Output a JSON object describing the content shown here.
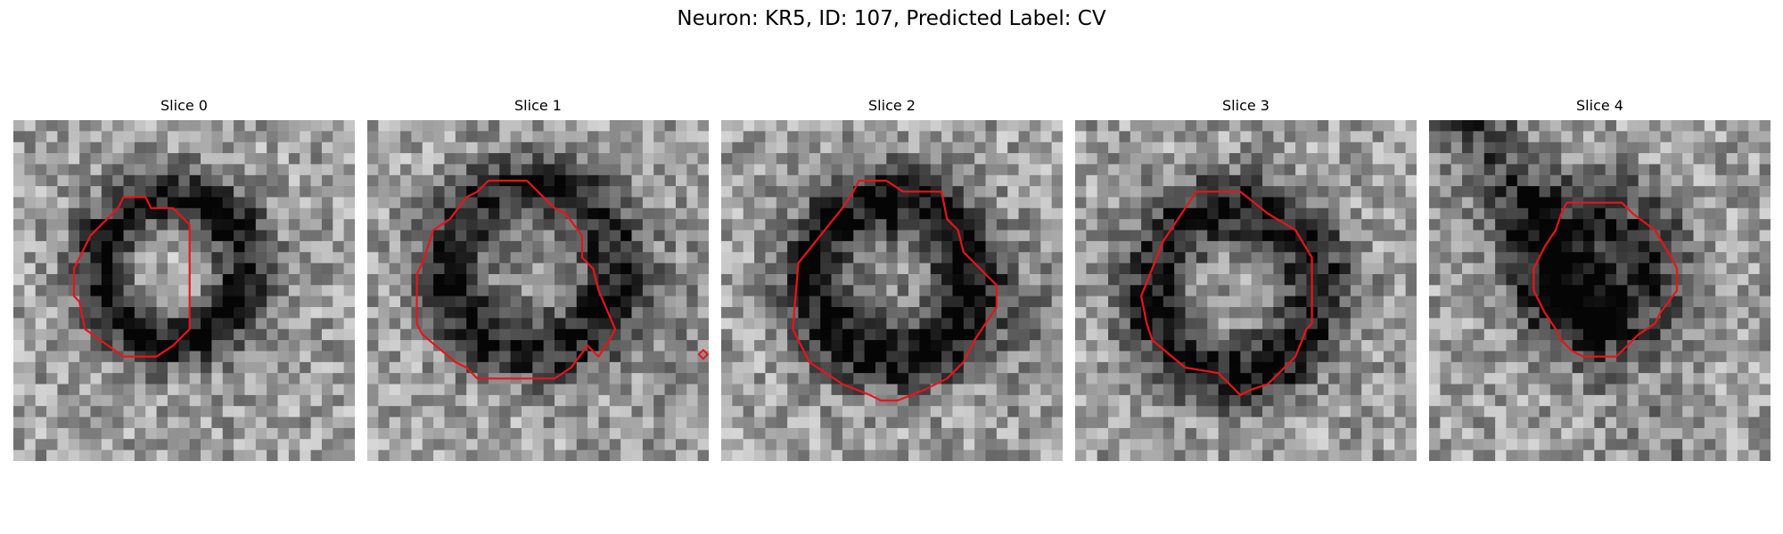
{
  "figure": {
    "title": "Neuron: KR5, ID: 107, Predicted Label: CV"
  },
  "panels": [
    {
      "title": "Slice 0"
    },
    {
      "title": "Slice 1"
    },
    {
      "title": "Slice 2"
    },
    {
      "title": "Slice 3"
    },
    {
      "title": "Slice 4"
    }
  ],
  "colors": {
    "contour": "#e8141b",
    "background": "#ffffff"
  }
}
